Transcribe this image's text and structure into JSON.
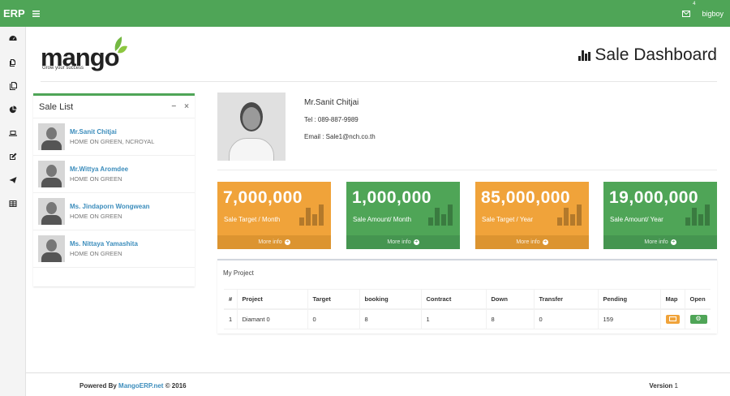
{
  "topbar": {
    "brand": "ERP",
    "mail_badge": "4",
    "username": "bigboy"
  },
  "sidebar": {
    "icons": [
      "dashboard-icon",
      "files-icon",
      "copy-icon",
      "pie-chart-icon",
      "laptop-icon",
      "edit-icon",
      "send-icon",
      "table-icon"
    ]
  },
  "logo": {
    "text": "mango",
    "tagline": "Grow your success"
  },
  "page": {
    "title": "Sale Dashboard"
  },
  "sale_list": {
    "title": "Sale List",
    "items": [
      {
        "name": "Mr.Sanit Chitjai",
        "location": "HOME ON GREEN, NCROYAL"
      },
      {
        "name": "Mr.Wittya Aromdee",
        "location": "HOME ON GREEN"
      },
      {
        "name": "Ms. Jindaporn Wongwean",
        "location": "HOME ON GREEN"
      },
      {
        "name": "Ms. Nittaya Yamashita",
        "location": "HOME ON GREEN"
      }
    ]
  },
  "profile": {
    "name": "Mr.Sanit Chitjai",
    "tel": "Tel : 089-887-9989",
    "email": "Email : Sale1@nch.co.th"
  },
  "stats": [
    {
      "value": "7,000,000",
      "label": "Sale Target / Month",
      "link": "More info",
      "color": "#f0a33a"
    },
    {
      "value": "1,000,000",
      "label": "Sale Amount/ Month",
      "link": "More info",
      "color": "#4fa557"
    },
    {
      "value": "85,000,000",
      "label": "Sale Target / Year",
      "link": "More info",
      "color": "#f0a33a"
    },
    {
      "value": "19,000,000",
      "label": "Sale Amount/ Year",
      "link": "More info",
      "color": "#4fa557"
    }
  ],
  "project": {
    "title": "My Project",
    "headers": [
      "#",
      "Project",
      "Target",
      "booking",
      "Contract",
      "Down",
      "Transfer",
      "Pending",
      "Map",
      "Open"
    ],
    "rows": [
      {
        "num": "1",
        "project": "Diamant 0",
        "target": "0",
        "booking": "8",
        "contract": "1",
        "down": "8",
        "transfer": "0",
        "pending": "159"
      }
    ]
  },
  "footer": {
    "powered_by": "Powered By",
    "link": "MangoERP.net",
    "copyright": "© 2016",
    "version_label": "Version",
    "version": "1"
  },
  "colors": {
    "primary": "#4fa557",
    "warning": "#f0a33a",
    "link": "#3c8dbc"
  }
}
